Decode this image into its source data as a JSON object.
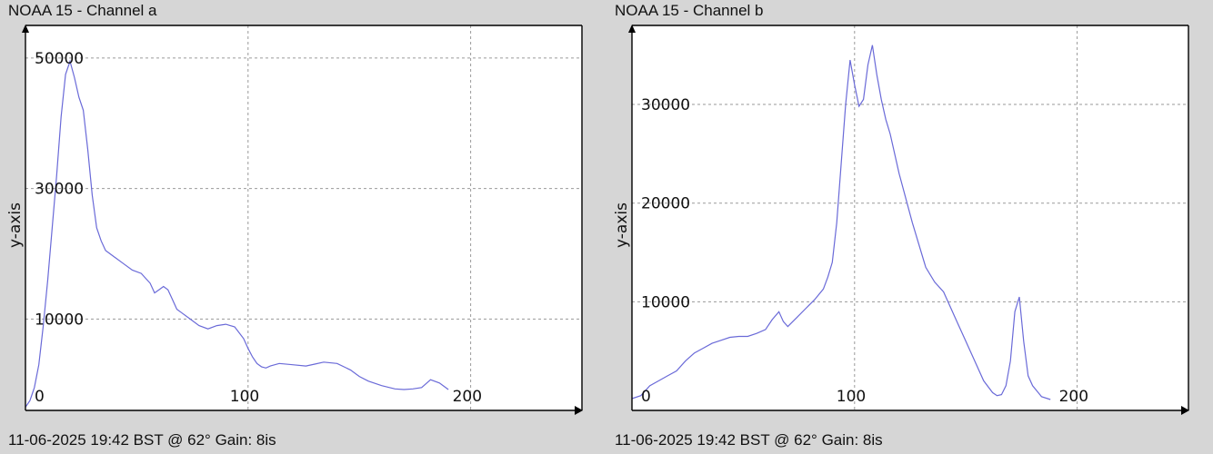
{
  "chart_data": [
    {
      "type": "line",
      "title": "NOAA 15 - Channel a",
      "footer": "11-06-2025 19:42 BST @ 62° Gain: 8is",
      "xlabel": "",
      "ylabel": "y-axis",
      "xlim": [
        0,
        250
      ],
      "ylim": [
        -4000,
        55000
      ],
      "x_ticks": [
        0,
        100,
        200
      ],
      "y_ticks": [
        10000,
        30000,
        50000
      ],
      "grid": true,
      "series": [
        {
          "color": "#6a6ad8",
          "x": [
            0,
            2,
            4,
            6,
            8,
            10,
            12,
            14,
            16,
            18,
            20,
            22,
            24,
            26,
            28,
            30,
            32,
            34,
            36,
            38,
            40,
            44,
            48,
            52,
            56,
            58,
            60,
            62,
            64,
            66,
            68,
            70,
            74,
            78,
            82,
            86,
            90,
            94,
            98,
            100,
            102,
            104,
            106,
            108,
            110,
            114,
            120,
            126,
            130,
            134,
            140,
            146,
            150,
            154,
            160,
            166,
            170,
            174,
            178,
            182,
            186,
            190
          ],
          "values": [
            -3500,
            -2500,
            -500,
            3000,
            9000,
            16000,
            24000,
            32000,
            41000,
            47500,
            49500,
            47000,
            44000,
            42000,
            36000,
            29000,
            24000,
            22000,
            20500,
            20000,
            19500,
            18500,
            17500,
            17000,
            15500,
            14000,
            14500,
            15000,
            14500,
            13000,
            11500,
            11000,
            10000,
            9000,
            8500,
            9000,
            9200,
            8800,
            7000,
            5500,
            4200,
            3200,
            2700,
            2500,
            2800,
            3200,
            3000,
            2800,
            3100,
            3400,
            3200,
            2200,
            1200,
            500,
            -200,
            -700,
            -800,
            -700,
            -500,
            700,
            200,
            -800
          ]
        }
      ]
    },
    {
      "type": "line",
      "title": "NOAA 15 - Channel b",
      "footer": "11-06-2025 19:42 BST @ 62° Gain: 8is",
      "xlabel": "",
      "ylabel": "y-axis",
      "xlim": [
        0,
        250
      ],
      "ylim": [
        -1000,
        38000
      ],
      "x_ticks": [
        0,
        100,
        200
      ],
      "y_ticks": [
        10000,
        20000,
        30000
      ],
      "grid": true,
      "series": [
        {
          "color": "#6a6ad8",
          "x": [
            0,
            4,
            8,
            12,
            16,
            20,
            24,
            28,
            32,
            36,
            40,
            44,
            48,
            52,
            56,
            60,
            63,
            66,
            68,
            70,
            74,
            78,
            82,
            86,
            88,
            90,
            92,
            94,
            96,
            98,
            100,
            102,
            104,
            106,
            108,
            110,
            112,
            114,
            116,
            120,
            126,
            132,
            136,
            140,
            146,
            150,
            154,
            158,
            162,
            164,
            166,
            168,
            170,
            172,
            174,
            176,
            178,
            180,
            184,
            188
          ],
          "values": [
            200,
            500,
            1500,
            2000,
            2500,
            3000,
            4000,
            4800,
            5300,
            5800,
            6100,
            6400,
            6500,
            6500,
            6800,
            7200,
            8200,
            9000,
            8000,
            7500,
            8400,
            9300,
            10200,
            11300,
            12500,
            14000,
            18000,
            24000,
            30000,
            34500,
            32000,
            29800,
            30500,
            34000,
            36000,
            33000,
            30500,
            28500,
            27000,
            23000,
            18000,
            13500,
            12000,
            11000,
            8000,
            6000,
            4000,
            2000,
            800,
            500,
            600,
            1500,
            4000,
            9000,
            10500,
            6000,
            2500,
            1500,
            400,
            100
          ]
        }
      ]
    }
  ]
}
